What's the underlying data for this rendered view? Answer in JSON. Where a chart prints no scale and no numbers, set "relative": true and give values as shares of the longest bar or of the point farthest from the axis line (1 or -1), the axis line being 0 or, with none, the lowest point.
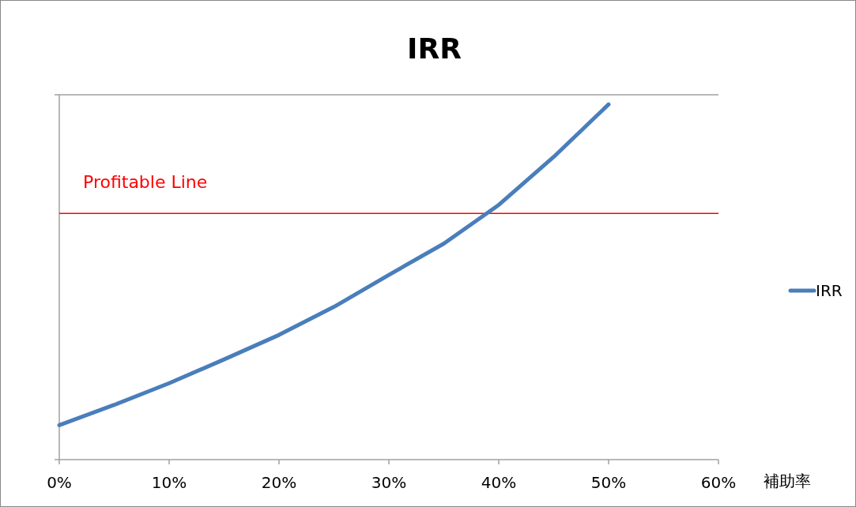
{
  "chart_data": {
    "type": "line",
    "title": "IRR",
    "xlabel": "補助率",
    "relative": true,
    "x": [
      0,
      5,
      10,
      15,
      20,
      25,
      30,
      35,
      40,
      45,
      50
    ],
    "xlim": [
      0,
      60
    ],
    "xticks": [
      {
        "value": 0,
        "label": "0%"
      },
      {
        "value": 10,
        "label": "10%"
      },
      {
        "value": 20,
        "label": "20%"
      },
      {
        "value": 30,
        "label": "30%"
      },
      {
        "value": 40,
        "label": "40%"
      },
      {
        "value": 50,
        "label": "50%"
      },
      {
        "value": 60,
        "label": "60%"
      }
    ],
    "series": [
      {
        "name": "IRR",
        "color": "#4a7ebb",
        "values": [
          0.097,
          0.154,
          0.215,
          0.282,
          0.351,
          0.43,
          0.52,
          0.608,
          0.717,
          0.852,
          1.0
        ]
      }
    ],
    "ref_lines": [
      {
        "axis": "y",
        "value": 0.693,
        "label": "Profitable Line",
        "color": "#ff0000"
      }
    ],
    "legend": "right",
    "grid": false,
    "marker": "none",
    "line_style": "solid"
  }
}
